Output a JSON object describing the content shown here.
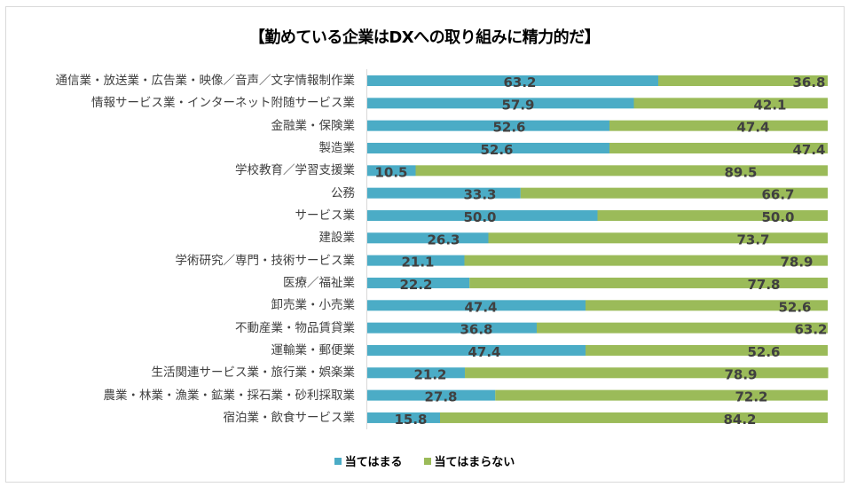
{
  "chart_data": {
    "type": "bar",
    "orientation": "horizontal",
    "stacked": "percent",
    "title": "【勤めている企業はDXへの取り組みに精力的だ】",
    "xlabel": "",
    "ylabel": "",
    "xlim": [
      0,
      100
    ],
    "grid": false,
    "legend_position": "bottom",
    "categories": [
      "通信業・放送業・広告業・映像／音声／文字情報制作業",
      "情報サービス業・インターネット附随サービス業",
      "金融業・保険業",
      "製造業",
      "学校教育／学習支援業",
      "公務",
      "サービス業",
      "建設業",
      "学術研究／専門・技術サービス業",
      "医療／福祉業",
      "卸売業・小売業",
      "不動産業・物品賃貸業",
      "運輸業・郵便業",
      "生活関連サービス業・旅行業・娯楽業",
      "農業・林業・漁業・鉱業・採石業・砂利採取業",
      "宿泊業・飲食サービス業"
    ],
    "series": [
      {
        "name": "当てはまる",
        "color": "#4BACC6",
        "values": [
          63.2,
          57.9,
          52.6,
          52.6,
          10.5,
          33.3,
          50.0,
          26.3,
          21.1,
          22.2,
          47.4,
          36.8,
          47.4,
          21.2,
          27.8,
          15.8
        ],
        "labels": [
          "63.2",
          "57.9",
          "52.6",
          "52.6",
          "10.5",
          "33.3",
          "50.0",
          "26.3",
          "21.1",
          "22.2",
          "47.4",
          "36.8",
          "47.4",
          "21.2",
          "27.8",
          "15.8"
        ]
      },
      {
        "name": "当てはまらない",
        "color": "#9BBB59",
        "values": [
          36.8,
          42.1,
          47.4,
          47.4,
          89.5,
          66.7,
          50.0,
          73.7,
          78.9,
          77.8,
          52.6,
          63.2,
          52.6,
          78.9,
          72.2,
          84.2
        ],
        "labels": [
          "36.8",
          "42.1",
          "47.4",
          "47.4",
          "89.5",
          "66.7",
          "50.0",
          "73.7",
          "78.9",
          "77.8",
          "52.6",
          "63.2",
          "52.6",
          "78.9",
          "72.2",
          "84.2"
        ]
      }
    ]
  }
}
